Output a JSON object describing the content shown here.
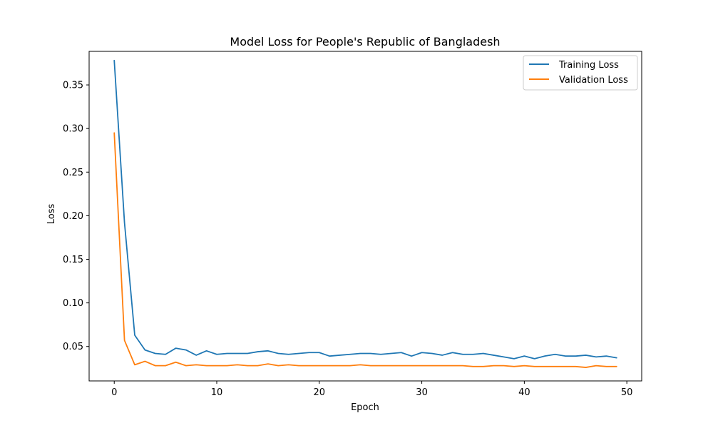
{
  "chart_data": {
    "type": "line",
    "title": "Model Loss for People's Republic of Bangladesh",
    "xlabel": "Epoch",
    "ylabel": "Loss",
    "xlim": [
      -2.45,
      51.45
    ],
    "ylim": [
      0.0105,
      0.3885
    ],
    "xticks": [
      0,
      10,
      20,
      30,
      40,
      50
    ],
    "yticks": [
      0.05,
      0.1,
      0.15,
      0.2,
      0.25,
      0.3,
      0.35
    ],
    "ytick_labels": [
      "0.05",
      "0.10",
      "0.15",
      "0.20",
      "0.25",
      "0.30",
      "0.35"
    ],
    "grid": false,
    "legend_position": "top-right",
    "x": [
      0,
      1,
      2,
      3,
      4,
      5,
      6,
      7,
      8,
      9,
      10,
      11,
      12,
      13,
      14,
      15,
      16,
      17,
      18,
      19,
      20,
      21,
      22,
      23,
      24,
      25,
      26,
      27,
      28,
      29,
      30,
      31,
      32,
      33,
      34,
      35,
      36,
      37,
      38,
      39,
      40,
      41,
      42,
      43,
      44,
      45,
      46,
      47,
      48,
      49
    ],
    "series": [
      {
        "name": "Training Loss",
        "color": "#1f77b4",
        "values": [
          0.378,
          0.192,
          0.063,
          0.046,
          0.042,
          0.041,
          0.048,
          0.046,
          0.04,
          0.045,
          0.041,
          0.042,
          0.042,
          0.042,
          0.044,
          0.045,
          0.042,
          0.041,
          0.042,
          0.043,
          0.043,
          0.039,
          0.04,
          0.041,
          0.042,
          0.042,
          0.041,
          0.042,
          0.043,
          0.039,
          0.043,
          0.042,
          0.04,
          0.043,
          0.041,
          0.041,
          0.042,
          0.04,
          0.038,
          0.036,
          0.039,
          0.036,
          0.039,
          0.041,
          0.039,
          0.039,
          0.04,
          0.038,
          0.039,
          0.037
        ]
      },
      {
        "name": "Validation Loss",
        "color": "#ff7f0e",
        "values": [
          0.295,
          0.057,
          0.029,
          0.033,
          0.028,
          0.028,
          0.032,
          0.028,
          0.029,
          0.028,
          0.028,
          0.028,
          0.029,
          0.028,
          0.028,
          0.03,
          0.028,
          0.029,
          0.028,
          0.028,
          0.028,
          0.028,
          0.028,
          0.028,
          0.029,
          0.028,
          0.028,
          0.028,
          0.028,
          0.028,
          0.028,
          0.028,
          0.028,
          0.028,
          0.028,
          0.027,
          0.027,
          0.028,
          0.028,
          0.027,
          0.028,
          0.027,
          0.027,
          0.027,
          0.027,
          0.027,
          0.026,
          0.028,
          0.027,
          0.027
        ]
      }
    ]
  }
}
